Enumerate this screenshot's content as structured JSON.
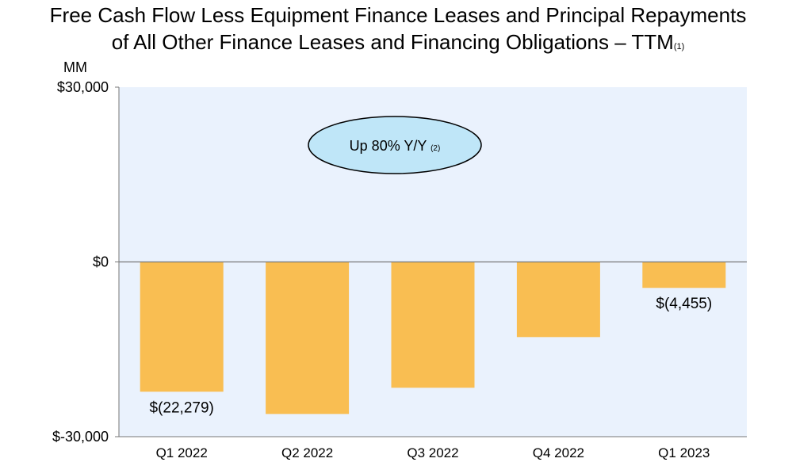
{
  "title": {
    "line1": "Free Cash Flow Less Equipment Finance Leases and Principal Repayments",
    "line2": "of All Other Finance Leases and Financing Obligations – TTM",
    "footnote": "(1)"
  },
  "unit_label": "MM",
  "colors": {
    "plot_bg": "#eaf2fd",
    "bar": "#f9be52",
    "bubble": "#bfe6f8",
    "axis": "#777777"
  },
  "chart_data": {
    "type": "bar",
    "categories": [
      "Q1 2022",
      "Q2 2022",
      "Q3 2022",
      "Q4 2022",
      "Q1 2023"
    ],
    "values": [
      -22279,
      -26100,
      -21600,
      -12900,
      -4455
    ],
    "data_labels": [
      "$(22,279)",
      "",
      "",
      "",
      "$(4,455)"
    ],
    "ylim": [
      -30000,
      30000
    ],
    "y_ticks": [
      {
        "value": 30000,
        "label": "$30,000"
      },
      {
        "value": 0,
        "label": "$0"
      },
      {
        "value": -30000,
        "label": "$-30,000"
      }
    ],
    "ylabel": "MM",
    "annotation": {
      "text": "Up 80% Y/Y",
      "footnote": "(2)"
    }
  }
}
